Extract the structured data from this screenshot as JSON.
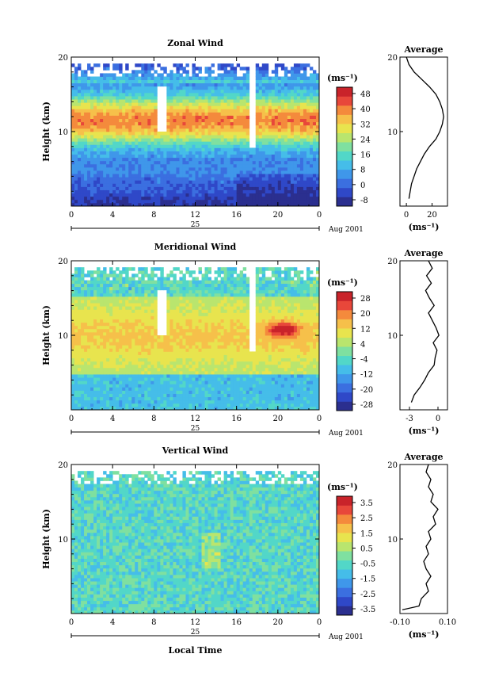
{
  "colors": {
    "scale": [
      "#2b2f8f",
      "#2f48c8",
      "#3b6fe0",
      "#3f97ea",
      "#45bde9",
      "#52d7c8",
      "#7fe0a0",
      "#b9e56e",
      "#e8e44e",
      "#f6c04a",
      "#f48a3c",
      "#e8473a",
      "#c9232a"
    ]
  },
  "chart_data": [
    {
      "type": "heatmap",
      "title": "Zonal Wind",
      "xlabel": "",
      "ylabel": "Height (km)",
      "xlim": [
        0,
        24
      ],
      "ylim": [
        0,
        20
      ],
      "x_ticks": [
        "0",
        "4",
        "8",
        "12",
        "16",
        "20",
        "0"
      ],
      "y_ticks": [
        "10",
        "20"
      ],
      "day_label": "25",
      "date_label": "Aug 2001",
      "colorbar": {
        "unit": "(ms⁻¹)",
        "ticks": [
          "48",
          "40",
          "32",
          "24",
          "16",
          "8",
          "0",
          "-8"
        ],
        "range": [
          -8,
          48
        ]
      },
      "profile_id": "p1",
      "structure": {
        "jet_height_km": 11.5,
        "jet_max_ms": 36
      },
      "average": {
        "title": "Average",
        "xticks": [
          "0",
          "20"
        ],
        "xlim": [
          -5,
          32
        ],
        "yticks": [
          "10",
          "20"
        ],
        "unit": "(ms⁻¹)",
        "height": [
          1,
          2,
          3,
          4,
          5,
          6,
          7,
          8,
          9,
          10,
          11,
          12,
          13,
          14,
          15,
          16,
          17,
          18,
          19,
          20
        ],
        "value": [
          2,
          3,
          4,
          6,
          8,
          11,
          14,
          18,
          23,
          26,
          28,
          29,
          28,
          26,
          23,
          18,
          12,
          6,
          2,
          0
        ]
      }
    },
    {
      "type": "heatmap",
      "title": "Meridional Wind",
      "xlabel": "",
      "ylabel": "Height (km)",
      "xlim": [
        0,
        24
      ],
      "ylim": [
        0,
        20
      ],
      "x_ticks": [
        "0",
        "4",
        "8",
        "12",
        "16",
        "20",
        "0"
      ],
      "y_ticks": [
        "10",
        "20"
      ],
      "day_label": "25",
      "date_label": "Aug 2001",
      "colorbar": {
        "unit": "(ms⁻¹)",
        "ticks": [
          "28",
          "20",
          "12",
          "4",
          "-4",
          "-12",
          "-20",
          "-28"
        ],
        "range": [
          -28,
          28
        ]
      },
      "profile_id": "p2",
      "average": {
        "title": "Average",
        "xticks": [
          "-3",
          "0"
        ],
        "xlim": [
          -4,
          1
        ],
        "yticks": [
          "10",
          "20"
        ],
        "unit": "(ms⁻¹)",
        "height": [
          1,
          2,
          3,
          4,
          5,
          6,
          7,
          8,
          9,
          10,
          11,
          12,
          13,
          14,
          15,
          16,
          17,
          18,
          19,
          20
        ],
        "value": [
          -2.8,
          -2.5,
          -1.9,
          -1.4,
          -1.0,
          -0.4,
          -0.3,
          -0.1,
          -0.5,
          0.1,
          -0.2,
          -0.6,
          -1.0,
          -0.4,
          -0.9,
          -1.3,
          -0.7,
          -1.2,
          -0.6,
          -1.0
        ]
      }
    },
    {
      "type": "heatmap",
      "title": "Vertical Wind",
      "xlabel": "Local Time",
      "ylabel": "Height (km)",
      "xlim": [
        0,
        24
      ],
      "ylim": [
        0,
        20
      ],
      "x_ticks": [
        "0",
        "4",
        "8",
        "12",
        "16",
        "20",
        "0"
      ],
      "y_ticks": [
        "10",
        "20"
      ],
      "day_label": "25",
      "date_label": "Aug 2001",
      "colorbar": {
        "unit": "(ms⁻¹)",
        "ticks": [
          "3.5",
          "2.5",
          "1.5",
          "0.5",
          "-0.5",
          "-1.5",
          "-2.5",
          "-3.5"
        ],
        "range": [
          -3.5,
          3.5
        ]
      },
      "profile_id": "p3",
      "average": {
        "title": "Average",
        "xticks": [
          "-0.10",
          "0.10"
        ],
        "xlim": [
          -0.1,
          0.1
        ],
        "yticks": [
          "10",
          "20"
        ],
        "unit": "(ms⁻¹)",
        "height": [
          0.5,
          1,
          2,
          3,
          4,
          5,
          6,
          7,
          8,
          9,
          10,
          11,
          12,
          13,
          14,
          15,
          16,
          17,
          18,
          19,
          20
        ],
        "value": [
          -0.09,
          -0.02,
          -0.01,
          0.02,
          0.01,
          0.03,
          0.01,
          0.0,
          0.02,
          0.01,
          0.03,
          0.02,
          0.05,
          0.04,
          0.06,
          0.03,
          0.04,
          0.02,
          0.03,
          0.01,
          0.02
        ]
      }
    }
  ]
}
